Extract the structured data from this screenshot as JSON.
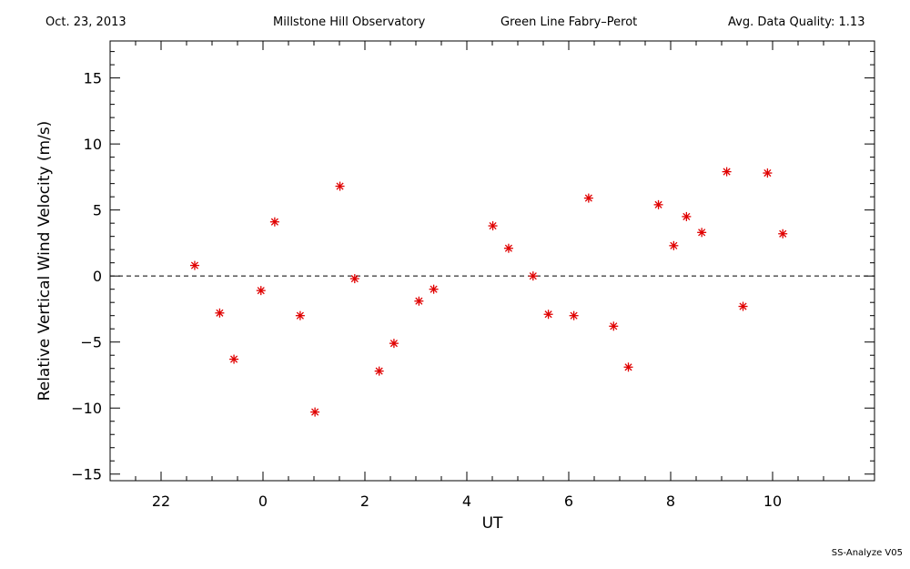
{
  "header": {
    "date": "Oct. 23, 2013",
    "observatory": "Millstone Hill Observatory",
    "instrument": "Green Line Fabry–Perot",
    "quality": "Avg. Data Quality: 1.13"
  },
  "footer": {
    "version": "SS-Analyze V05"
  },
  "colors": {
    "points": "#e00000",
    "axes": "#000000"
  },
  "chart_data": {
    "type": "scatter",
    "title": "",
    "xlabel": "UT",
    "ylabel": "Relative Vertical Wind Velocity (m/s)",
    "xlim": [
      21,
      36
    ],
    "ylim": [
      -15.5,
      17.8
    ],
    "x_tick_values": [
      22,
      24,
      26,
      28,
      30,
      32,
      34
    ],
    "x_tick_labels": [
      "22",
      "0",
      "2",
      "4",
      "6",
      "8",
      "10"
    ],
    "y_tick_values": [
      -15,
      -10,
      -5,
      0,
      5,
      10,
      15
    ],
    "y_tick_labels": [
      "−15",
      "−10",
      "−5",
      "0",
      "5",
      "10",
      "15"
    ],
    "zero_line": true,
    "marker": "*",
    "series": [
      {
        "x": [
          22.66,
          23.15,
          23.43,
          23.96,
          24.23,
          24.73,
          25.02,
          25.51,
          25.8,
          26.28,
          26.57,
          27.06,
          27.35,
          28.51,
          28.82,
          29.3,
          29.6,
          30.1,
          30.39,
          30.88,
          31.17,
          31.76,
          32.06,
          32.31,
          32.61,
          33.1,
          33.42,
          33.9,
          34.2
        ],
        "y": [
          0.8,
          -2.8,
          -6.3,
          -1.1,
          4.1,
          -3.0,
          -10.3,
          6.8,
          -0.2,
          -7.2,
          -5.1,
          -1.9,
          -1.0,
          3.8,
          2.1,
          0.0,
          -2.9,
          -3.0,
          5.9,
          -3.8,
          -6.9,
          5.4,
          2.3,
          4.5,
          3.3,
          7.9,
          -2.3,
          7.8,
          3.2
        ]
      }
    ]
  }
}
